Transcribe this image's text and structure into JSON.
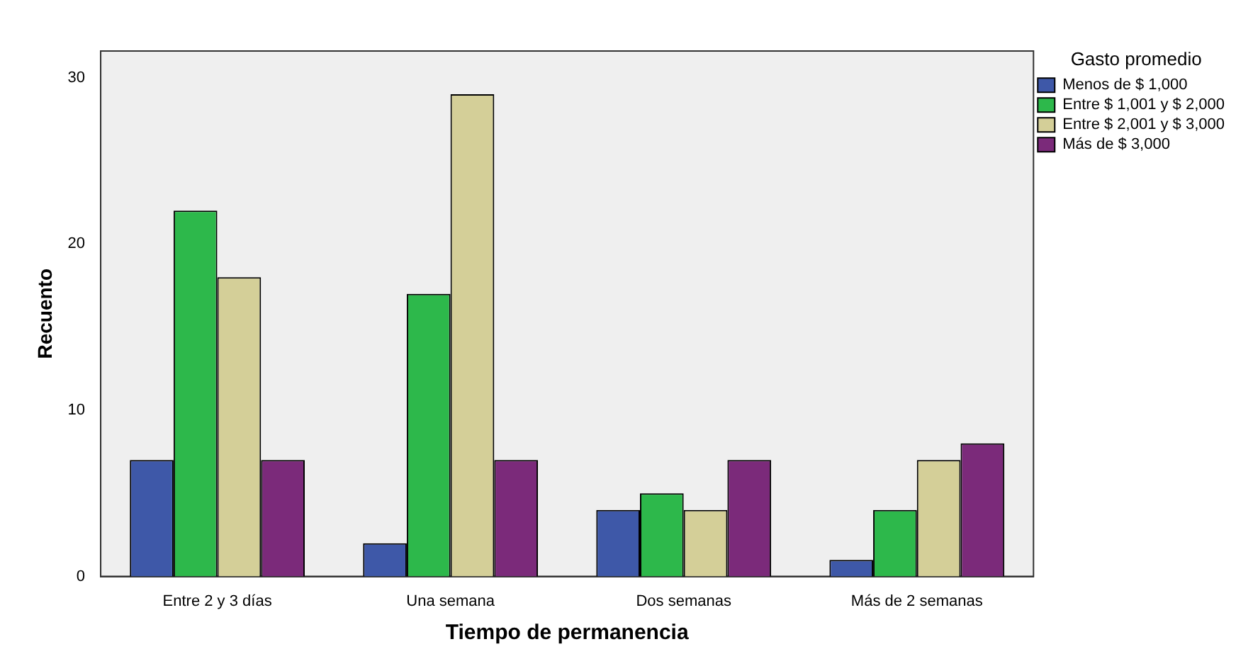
{
  "chart_data": {
    "type": "bar",
    "xlabel": "Tiempo de permanencia",
    "ylabel": "Recuento",
    "legend_title": "Gasto promedio",
    "categories": [
      "Entre 2 y 3 días",
      "Una semana",
      "Dos semanas",
      "Más de 2 semanas"
    ],
    "series": [
      {
        "name": "Menos de $ 1,000",
        "color": "#3e58a8",
        "values": [
          7,
          2,
          4,
          1
        ]
      },
      {
        "name": "Entre $ 1,001 y $ 2,000",
        "color": "#2db84b",
        "values": [
          22,
          17,
          5,
          4
        ]
      },
      {
        "name": "Entre $ 2,001 y $ 3,000",
        "color": "#d4cf98",
        "values": [
          18,
          29,
          4,
          7
        ]
      },
      {
        "name": "Más de $ 3,000",
        "color": "#7b2a7a",
        "values": [
          7,
          7,
          7,
          8
        ]
      }
    ],
    "ylim": [
      0,
      31.6
    ],
    "yticks": [
      0,
      10,
      20,
      30
    ],
    "grid": false,
    "legend": "top right"
  }
}
